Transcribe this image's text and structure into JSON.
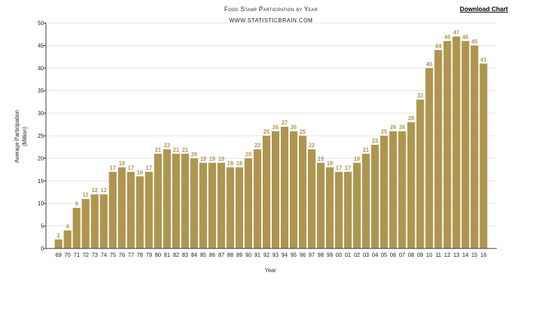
{
  "header": {
    "download_label": "Download Chart"
  },
  "chart_data": {
    "type": "bar",
    "title": "Food Stamp Participation by Year",
    "subtitle": "WWW.STATISTICBRAIN.COM",
    "xlabel": "Year",
    "ylabel_line1": "Average Participation",
    "ylabel_line2": "(Million)",
    "ylim": [
      0,
      50
    ],
    "yticks": [
      0,
      5,
      10,
      15,
      20,
      25,
      30,
      35,
      40,
      45,
      50
    ],
    "grid": true,
    "bar_color": "#ae9650",
    "label_color": "#a89552",
    "categories": [
      "69",
      "70",
      "71",
      "72",
      "73",
      "74",
      "75",
      "76",
      "77",
      "78",
      "79",
      "80",
      "81",
      "82",
      "83",
      "84",
      "85",
      "86",
      "87",
      "88",
      "89",
      "90",
      "91",
      "92",
      "93",
      "94",
      "95",
      "96",
      "97",
      "98",
      "99",
      "00",
      "01",
      "02",
      "03",
      "04",
      "05",
      "06",
      "07",
      "08",
      "09",
      "10",
      "11",
      "12",
      "13",
      "14",
      "15",
      "16"
    ],
    "values": [
      2,
      4,
      9,
      11,
      12,
      12,
      17,
      18,
      17,
      16,
      17,
      21,
      22,
      21,
      21,
      20,
      19,
      19,
      19,
      18,
      18,
      20,
      22,
      25,
      26,
      27,
      26,
      25,
      22,
      19,
      18,
      17,
      17,
      19,
      21,
      23,
      25,
      26,
      26,
      28,
      33,
      40,
      44,
      46,
      47,
      46,
      45,
      41
    ]
  }
}
